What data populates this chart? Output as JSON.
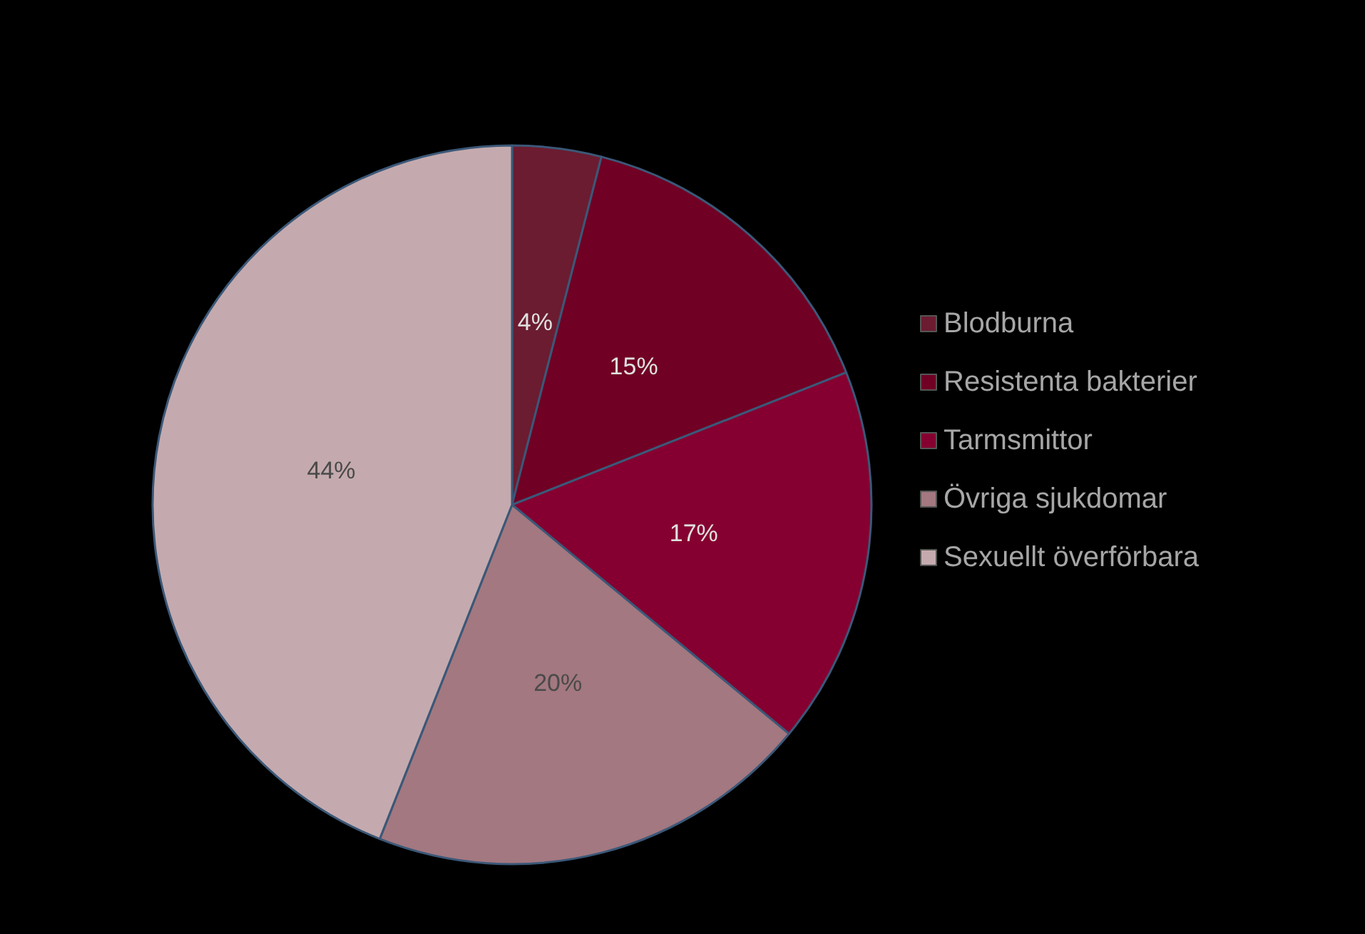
{
  "chart_data": {
    "type": "pie",
    "categories": [
      "Blodburna",
      "Resistenta bakterier",
      "Tarmsmittor",
      "Övriga sjukdomar",
      "Sexuellt överförbara"
    ],
    "values": [
      4,
      15,
      17,
      20,
      44
    ],
    "colors": [
      "#6b1c30",
      "#700024",
      "#850030",
      "#a37880",
      "#c4aaae"
    ],
    "value_labels": [
      "4%",
      "15%",
      "17%",
      "20%",
      "44%"
    ],
    "legend": "right"
  }
}
